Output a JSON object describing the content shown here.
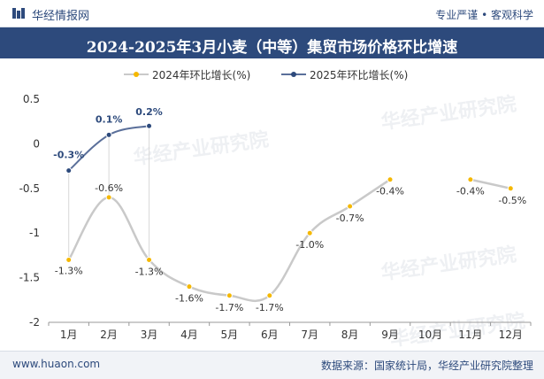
{
  "header": {
    "brand": "华经情报网",
    "slogan": "专业严谨 • 客观科学",
    "title": "2024-2025年3月小麦（中等）集贸市场价格环比增速"
  },
  "footer": {
    "website": "www.huaon.com",
    "source": "数据来源：国家统计局，华经产业研究院整理"
  },
  "watermarks": [
    "华经产业研究院",
    "www.huaon.com"
  ],
  "chart_data": {
    "type": "line",
    "title": "2024-2025年3月小麦（中等）集贸市场价格环比增速",
    "categories": [
      "1月",
      "2月",
      "3月",
      "4月",
      "5月",
      "6月",
      "7月",
      "8月",
      "9月",
      "10月",
      "11月",
      "12月"
    ],
    "ylim": [
      -2,
      0.5
    ],
    "yticks": [
      -2,
      -1.5,
      -1,
      -0.5,
      0,
      0.5
    ],
    "ytick_labels": [
      "-2",
      "-1.5",
      "-1",
      "-0.5",
      "0",
      "0.5"
    ],
    "legend_position": "top",
    "series": [
      {
        "name": "2024年环比增长(%)",
        "color": "#c9c9c9",
        "marker_color": "#f5b800",
        "values": [
          -1.3,
          -0.6,
          -1.3,
          -1.6,
          -1.7,
          -1.7,
          -1.0,
          -0.7,
          -0.4,
          null,
          -0.4,
          -0.5
        ],
        "labels": [
          "-1.3%",
          "-0.6%",
          "-1.3%",
          "-1.6%",
          "-1.7%",
          "-1.7%",
          "-1.0%",
          "-0.7%",
          "-0.4%",
          "",
          "-0.4%",
          "-0.5%"
        ]
      },
      {
        "name": "2025年环比增长(%)",
        "color": "#5a6f9a",
        "marker_color": "#2d4a7c",
        "values": [
          -0.3,
          0.1,
          0.2,
          null,
          null,
          null,
          null,
          null,
          null,
          null,
          null,
          null
        ],
        "labels": [
          "-0.3%",
          "0.1%",
          "0.2%",
          "",
          "",
          "",
          "",
          "",
          "",
          "",
          "",
          ""
        ]
      }
    ]
  }
}
